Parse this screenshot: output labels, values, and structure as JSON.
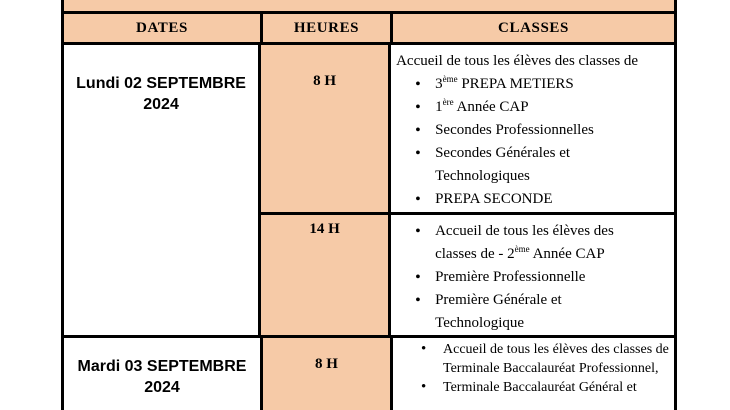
{
  "colors": {
    "header_fill": "#F6CAA7",
    "border": "#000000",
    "text": "#000000",
    "page_background": "#ffffff"
  },
  "table": {
    "headers": [
      "DATES",
      "HEURES",
      "CLASSES"
    ],
    "rows": [
      {
        "date_line1": "Lundi 02 SEPTEMBRE",
        "date_line2": "2024",
        "slots": [
          {
            "hour": "8 H",
            "intro": "Accueil de tous les élèves des classes de",
            "items": [
              {
                "pre": "3",
                "sup": "ème",
                "post": " PREPA METIERS"
              },
              {
                "pre": "1",
                "sup": "ère",
                "post": " Année CAP"
              },
              {
                "pre": "Secondes Professionnelles",
                "sup": "",
                "post": ""
              },
              {
                "pre": "Secondes Générales et Technologiques",
                "sup": "",
                "post": ""
              },
              {
                "pre": "PREPA SECONDE",
                "sup": "",
                "post": ""
              }
            ]
          },
          {
            "hour": "14 H",
            "intro": "",
            "items": [
              {
                "pre": "Accueil de tous les élèves des classes de - 2",
                "sup": "ème",
                "post": " Année CAP"
              },
              {
                "pre": "Première Professionnelle",
                "sup": "",
                "post": ""
              },
              {
                "pre": "Première Générale et Technologique",
                "sup": "",
                "post": ""
              }
            ]
          }
        ]
      },
      {
        "date_line1": "Mardi 03 SEPTEMBRE",
        "date_line2": "2024",
        "slots": [
          {
            "hour": "8 H",
            "intro": "",
            "items": [
              {
                "pre": "Accueil de tous les élèves des classes de Terminale Baccalauréat Professionnel,",
                "sup": "",
                "post": ""
              },
              {
                "pre": "Terminale Baccalauréat Général et",
                "sup": "",
                "post": ""
              }
            ]
          }
        ]
      }
    ]
  }
}
